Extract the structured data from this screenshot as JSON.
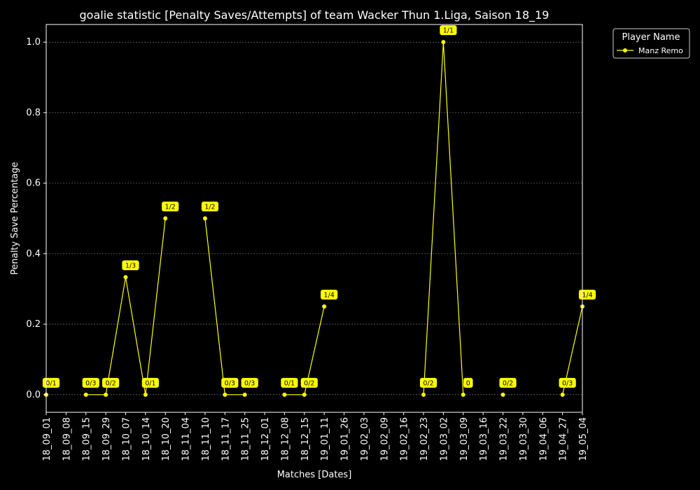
{
  "chart_data": {
    "type": "line",
    "title": "goalie statistic [Penalty Saves/Attempts] of team Wacker Thun 1.Liga, Saison 18_19",
    "xlabel": "Matches [Dates]",
    "ylabel": "Penalty Save Percentage",
    "ylim": [
      -0.05,
      1.05
    ],
    "yticks": [
      "0.0",
      "0.2",
      "0.4",
      "0.6",
      "0.8",
      "1.0"
    ],
    "categories": [
      "18_09_01",
      "18_09_08",
      "18_09_15",
      "18_09_29",
      "18_10_07",
      "18_10_14",
      "18_10_20",
      "18_11_04",
      "18_11_10",
      "18_11_17",
      "18_11_25",
      "18_12_01",
      "18_12_08",
      "18_12_15",
      "19_01_11",
      "19_01_26",
      "19_02_03",
      "19_02_09",
      "19_02_16",
      "19_02_23",
      "19_03_02",
      "19_03_09",
      "19_03_16",
      "19_03_22",
      "19_03_30",
      "19_04_06",
      "19_04_27",
      "19_05_04"
    ],
    "grid": "y-dotted",
    "legend": {
      "title": "Player Name",
      "placement": "outside-top-right"
    },
    "series": [
      {
        "name": "Manz Remo",
        "color": "#ffff00",
        "values": [
          0,
          null,
          0,
          0,
          0.3333,
          0,
          0.5,
          null,
          0.5,
          0,
          0,
          null,
          0,
          0,
          0.25,
          null,
          null,
          null,
          null,
          0,
          1.0,
          0,
          null,
          0,
          null,
          null,
          0,
          0.25
        ],
        "labels": [
          "0/1",
          null,
          "0/3",
          "0/2",
          "1/3",
          "0/1",
          "1/2",
          null,
          "1/2",
          "0/3",
          "0/3",
          null,
          "0/1",
          "0/2",
          "1/4",
          null,
          null,
          null,
          null,
          "0/2",
          "1/1",
          "0",
          null,
          "0/2",
          null,
          null,
          "0/3",
          "1/4"
        ]
      }
    ]
  }
}
